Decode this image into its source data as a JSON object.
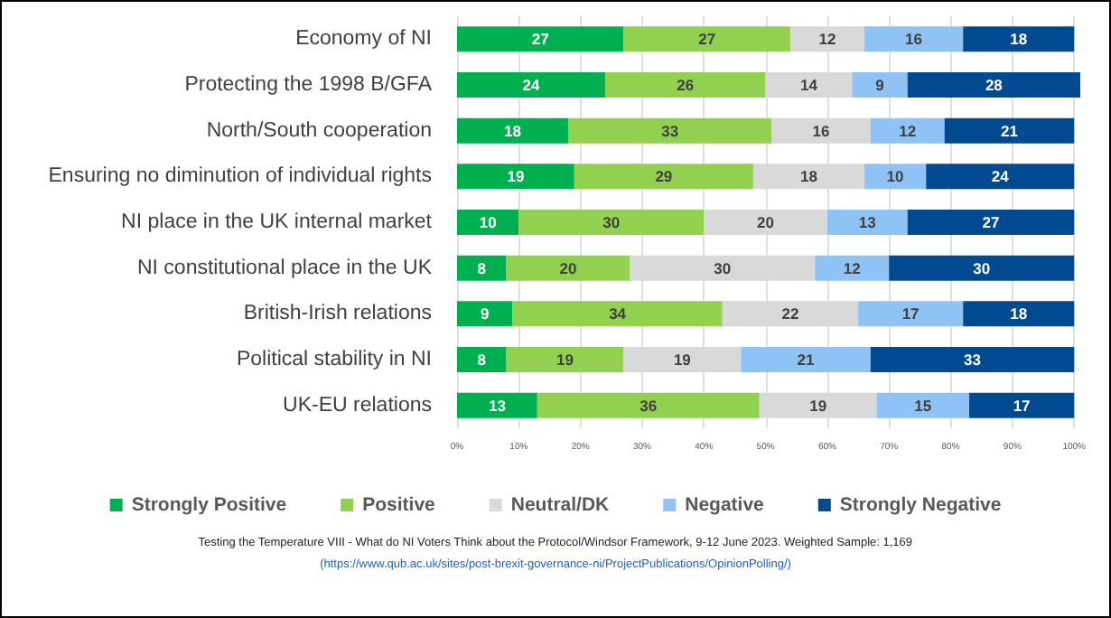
{
  "chart_data": {
    "type": "bar",
    "orientation": "horizontal",
    "stacked": true,
    "data_labels": true,
    "grid": "x",
    "legend": "bottom",
    "categories": [
      "Economy of NI",
      "Protecting the 1998 B/GFA",
      "North/South cooperation",
      "Ensuring no diminution of individual rights",
      "NI place in the UK internal market",
      "NI constitutional place in the UK",
      "British-Irish relations",
      "Political stability in NI",
      "UK-EU relations"
    ],
    "series": [
      {
        "name": "Strongly Positive",
        "color": "#00b050",
        "values": [
          27,
          24,
          18,
          19,
          10,
          8,
          9,
          8,
          13
        ]
      },
      {
        "name": "Positive",
        "color": "#92d050",
        "values": [
          27,
          26,
          33,
          29,
          30,
          20,
          34,
          19,
          36
        ]
      },
      {
        "name": "Neutral/DK",
        "color": "#d9d9d9",
        "values": [
          12,
          14,
          16,
          18,
          20,
          30,
          22,
          19,
          19
        ]
      },
      {
        "name": "Negative",
        "color": "#8fc3f5",
        "values": [
          16,
          9,
          12,
          10,
          13,
          12,
          17,
          21,
          15
        ]
      },
      {
        "name": "Strongly Negative",
        "color": "#024a8f",
        "values": [
          18,
          28,
          21,
          24,
          27,
          30,
          18,
          33,
          17
        ]
      }
    ],
    "xlim": [
      0,
      101
    ],
    "xticks": [
      {
        "value": 0,
        "label": "0%"
      },
      {
        "value": 10,
        "label": "10%"
      },
      {
        "value": 20,
        "label": "20%"
      },
      {
        "value": 30,
        "label": "30%"
      },
      {
        "value": 40,
        "label": "40%"
      },
      {
        "value": 50,
        "label": "50%"
      },
      {
        "value": 60,
        "label": "60%"
      },
      {
        "value": 70,
        "label": "70%"
      },
      {
        "value": 80,
        "label": "80%"
      },
      {
        "value": 90,
        "label": "90%"
      },
      {
        "value": 100,
        "label": "100%"
      }
    ],
    "annotations": [
      "Testing the Temperature VIII - What do NI Voters Think about the Protocol/Windsor Framework, 9-12 June 2023. Weighted Sample: 1,169",
      "(https://www.qub.ac.uk/sites/post-brexit-governance-ni/ProjectPublications/OpinionPolling/)"
    ]
  }
}
